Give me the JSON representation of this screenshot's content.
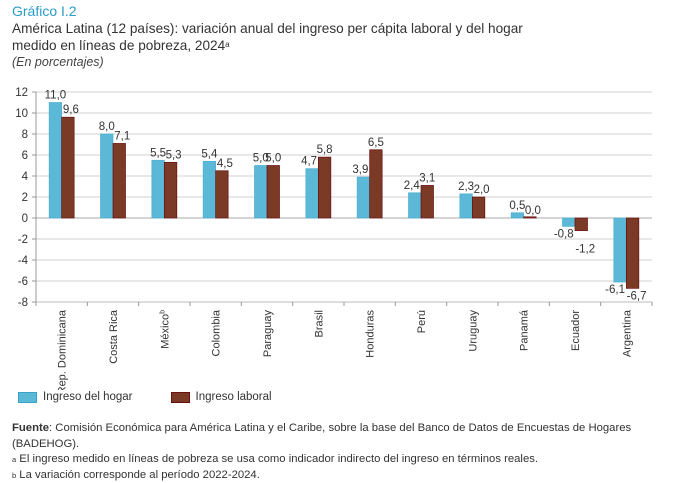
{
  "header": {
    "figure_label": "Gráfico I.2",
    "title_line1": "América Latina (12 países): variación anual del ingreso per cápita laboral y del hogar",
    "title_line2": "medido en líneas de pobreza, 2024",
    "title_footnote_mark": "a",
    "subtitle": "(En porcentajes)"
  },
  "chart_data": {
    "type": "bar",
    "title": "América Latina (12 países): variación anual del ingreso per cápita laboral y del hogar medido en líneas de pobreza, 2024",
    "xlabel": "",
    "ylabel": "",
    "ylim": [
      -8,
      12
    ],
    "yticks": [
      12,
      10,
      8,
      6,
      4,
      2,
      0,
      -2,
      -4,
      -6,
      -8
    ],
    "grid": true,
    "categories": [
      "Rep. Dominicana",
      "Costa Rica",
      "México",
      "Colombia",
      "Paraguay",
      "Brasil",
      "Honduras",
      "Perú",
      "Uruguay",
      "Panamá",
      "Ecuador",
      "Argentina"
    ],
    "category_footnotes": [
      "",
      "",
      "b",
      "",
      "",
      "",
      "",
      "",
      "",
      "",
      "",
      ""
    ],
    "series": [
      {
        "name": "Ingreso del hogar",
        "color": "#5bb8d6",
        "values": [
          11.0,
          8.0,
          5.5,
          5.4,
          5.0,
          4.7,
          3.9,
          2.4,
          2.3,
          0.5,
          -0.8,
          -6.1
        ],
        "labels": [
          "11,0",
          "8,0",
          "5,5",
          "5,4",
          "5,0",
          "4,7",
          "3,9",
          "2,4",
          "2,3",
          "0,5",
          "-0,8",
          "-6,1"
        ]
      },
      {
        "name": "Ingreso laboral",
        "color": "#7a3a26",
        "values": [
          9.6,
          7.1,
          5.3,
          4.5,
          5.0,
          5.8,
          6.5,
          3.1,
          2.0,
          0.0,
          -1.2,
          -6.7
        ],
        "labels": [
          "9,6",
          "7,1",
          "5,3",
          "4,5",
          "5,0",
          "5,8",
          "6,5",
          "3,1",
          "2,0",
          "0,0",
          "-1,2",
          "-6,7"
        ]
      }
    ],
    "legend_position": "bottom-left"
  },
  "notes": {
    "source_label": "Fuente",
    "source_text": ": Comisión Económica para América Latina y el Caribe, sobre la base del Banco de Datos de Encuestas de Hogares (BADEHOG).",
    "note_a_mark": "a",
    "note_a_text": " El ingreso medido en líneas de pobreza se usa como indicador indirecto del ingreso en términos reales.",
    "note_b_mark": "b",
    "note_b_text": " La variación corresponde al período 2022-2024."
  }
}
